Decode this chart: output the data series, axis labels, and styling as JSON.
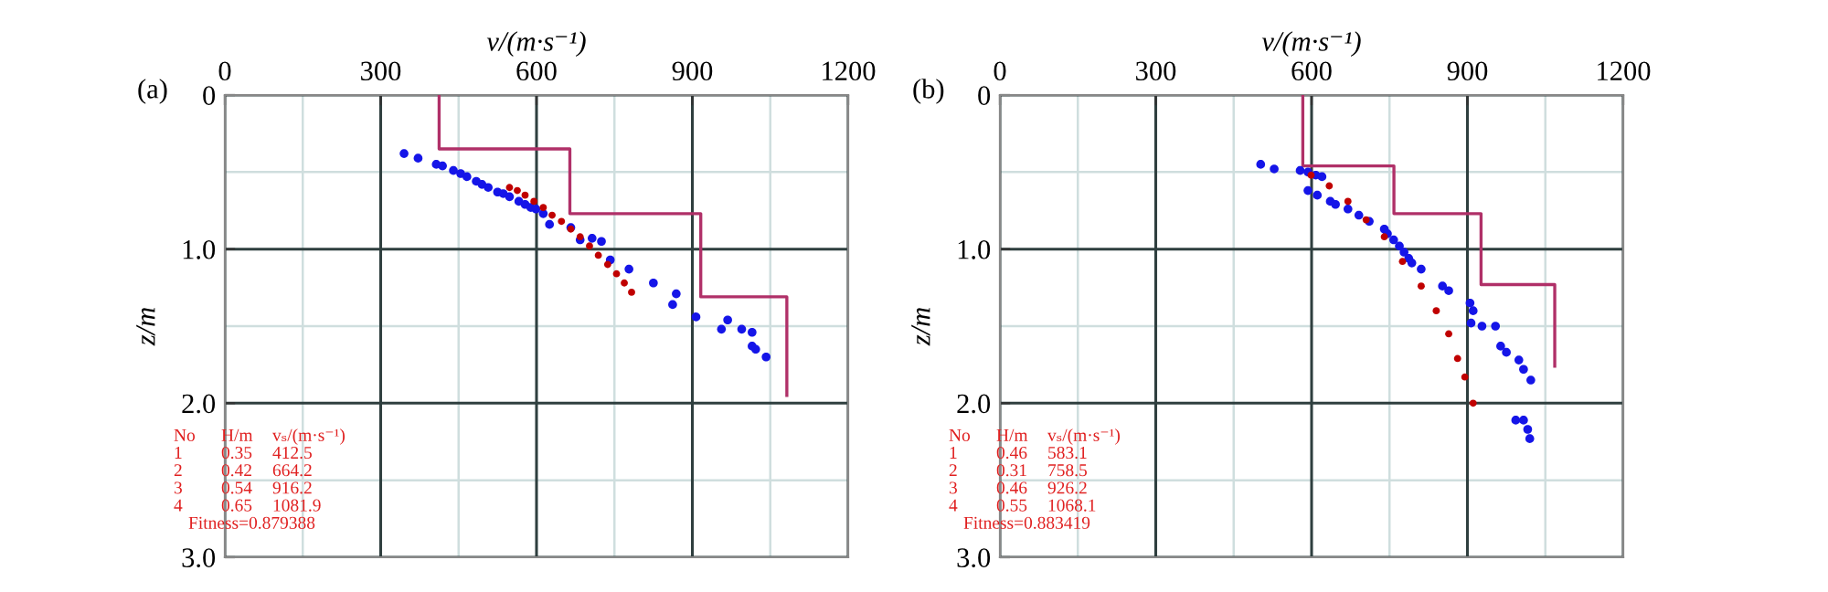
{
  "chart_data": [
    {
      "type": "scatter",
      "xlabel": "v/(m·s⁻¹)",
      "ylabel": "z/m",
      "xlim": [
        0,
        1200
      ],
      "xticks": [
        0,
        300,
        600,
        900,
        1200
      ],
      "ylim": [
        3.0,
        0
      ],
      "yticks": [
        0,
        {
          "value": 1,
          "label": "1.0"
        },
        {
          "value": 2,
          "label": "2.0"
        },
        {
          "value": 3,
          "label": "3.0"
        }
      ],
      "grid": true,
      "annotations": [
        "(a)",
        "No H/m vₛ/(m·s⁻¹)",
        "1 0.35 412.5",
        "2 0.42 664.2",
        "3 0.54 916.2",
        "4 0.65 1081.9",
        "Fitness=0.879388"
      ],
      "series": [
        {
          "type": "line",
          "color": "#b03068",
          "x": [
            412.5,
            412.5,
            664.2,
            664.2,
            916.2,
            916.2,
            1081.9,
            1081.9
          ],
          "values": [
            0,
            0.35,
            0.35,
            0.77,
            0.77,
            1.31,
            1.31,
            1.95
          ]
        },
        {
          "color": "#1515e8",
          "x": [
            345,
            372,
            407,
            419,
            440,
            454,
            466,
            484,
            495,
            507,
            525,
            536,
            548,
            566,
            578,
            589,
            599,
            613,
            625,
            666,
            684,
            707,
            725,
            742,
            778,
            825,
            869,
            862,
            907,
            956,
            968,
            995,
            1015,
            1015,
            1022,
            1042
          ],
          "values": [
            0.38,
            0.41,
            0.45,
            0.46,
            0.49,
            0.51,
            0.53,
            0.56,
            0.58,
            0.6,
            0.63,
            0.64,
            0.66,
            0.69,
            0.71,
            0.73,
            0.74,
            0.77,
            0.84,
            0.86,
            0.94,
            0.93,
            0.95,
            1.07,
            1.13,
            1.22,
            1.29,
            1.36,
            1.44,
            1.52,
            1.46,
            1.52,
            1.54,
            1.63,
            1.65,
            1.7
          ]
        },
        {
          "color": "#c00000",
          "x": [
            548,
            563,
            578,
            595,
            613,
            630,
            648,
            666,
            684,
            702,
            719,
            737,
            754,
            769,
            783
          ],
          "values": [
            0.6,
            0.62,
            0.65,
            0.69,
            0.73,
            0.78,
            0.82,
            0.87,
            0.92,
            0.98,
            1.04,
            1.1,
            1.16,
            1.22,
            1.28
          ]
        }
      ]
    },
    {
      "type": "scatter",
      "xlabel": "v/(m·s⁻¹)",
      "ylabel": "z/m",
      "xlim": [
        0,
        1200
      ],
      "xticks": [
        0,
        300,
        600,
        900,
        1200
      ],
      "ylim": [
        3.0,
        0
      ],
      "yticks": [
        0,
        {
          "value": 1,
          "label": "1.0"
        },
        {
          "value": 2,
          "label": "2.0"
        },
        {
          "value": 3,
          "label": "3.0"
        }
      ],
      "grid": true,
      "annotations": [
        "(b)",
        "No H/m vₛ/(m·s⁻¹)",
        "1 0.46 583.1",
        "2 0.31 758.5",
        "3 0.46 926.2",
        "4 0.55 1068.1",
        "Fitness=0.883419"
      ],
      "series": [
        {
          "type": "line",
          "color": "#b03068",
          "x": [
            583.1,
            583.1,
            758.5,
            758.5,
            926.2,
            926.2,
            1068.1,
            1068.1
          ],
          "values": [
            0,
            0.46,
            0.46,
            0.77,
            0.77,
            1.23,
            1.23,
            1.76
          ]
        },
        {
          "color": "#1515e8",
          "x": [
            502,
            528,
            578,
            593,
            608,
            620,
            593,
            611,
            636,
            646,
            670,
            691,
            711,
            740,
            746,
            758,
            769,
            778,
            787,
            793,
            811,
            852,
            864,
            905,
            911,
            907,
            928,
            954,
            964,
            975,
            999,
            1008,
            1022,
            993,
            1008,
            1016,
            1020
          ],
          "values": [
            0.45,
            0.48,
            0.49,
            0.5,
            0.52,
            0.53,
            0.62,
            0.65,
            0.69,
            0.71,
            0.74,
            0.78,
            0.82,
            0.87,
            0.9,
            0.94,
            0.98,
            1.02,
            1.06,
            1.09,
            1.13,
            1.24,
            1.27,
            1.35,
            1.4,
            1.48,
            1.5,
            1.5,
            1.63,
            1.67,
            1.72,
            1.78,
            1.85,
            2.11,
            2.11,
            2.17,
            2.23
          ]
        },
        {
          "color": "#c00000",
          "x": [
            599,
            634,
            670,
            705,
            740,
            775,
            811,
            840,
            864,
            881,
            895,
            911
          ],
          "values": [
            0.52,
            0.59,
            0.69,
            0.81,
            0.92,
            1.08,
            1.24,
            1.4,
            1.55,
            1.71,
            1.83,
            2.0
          ]
        }
      ]
    }
  ]
}
